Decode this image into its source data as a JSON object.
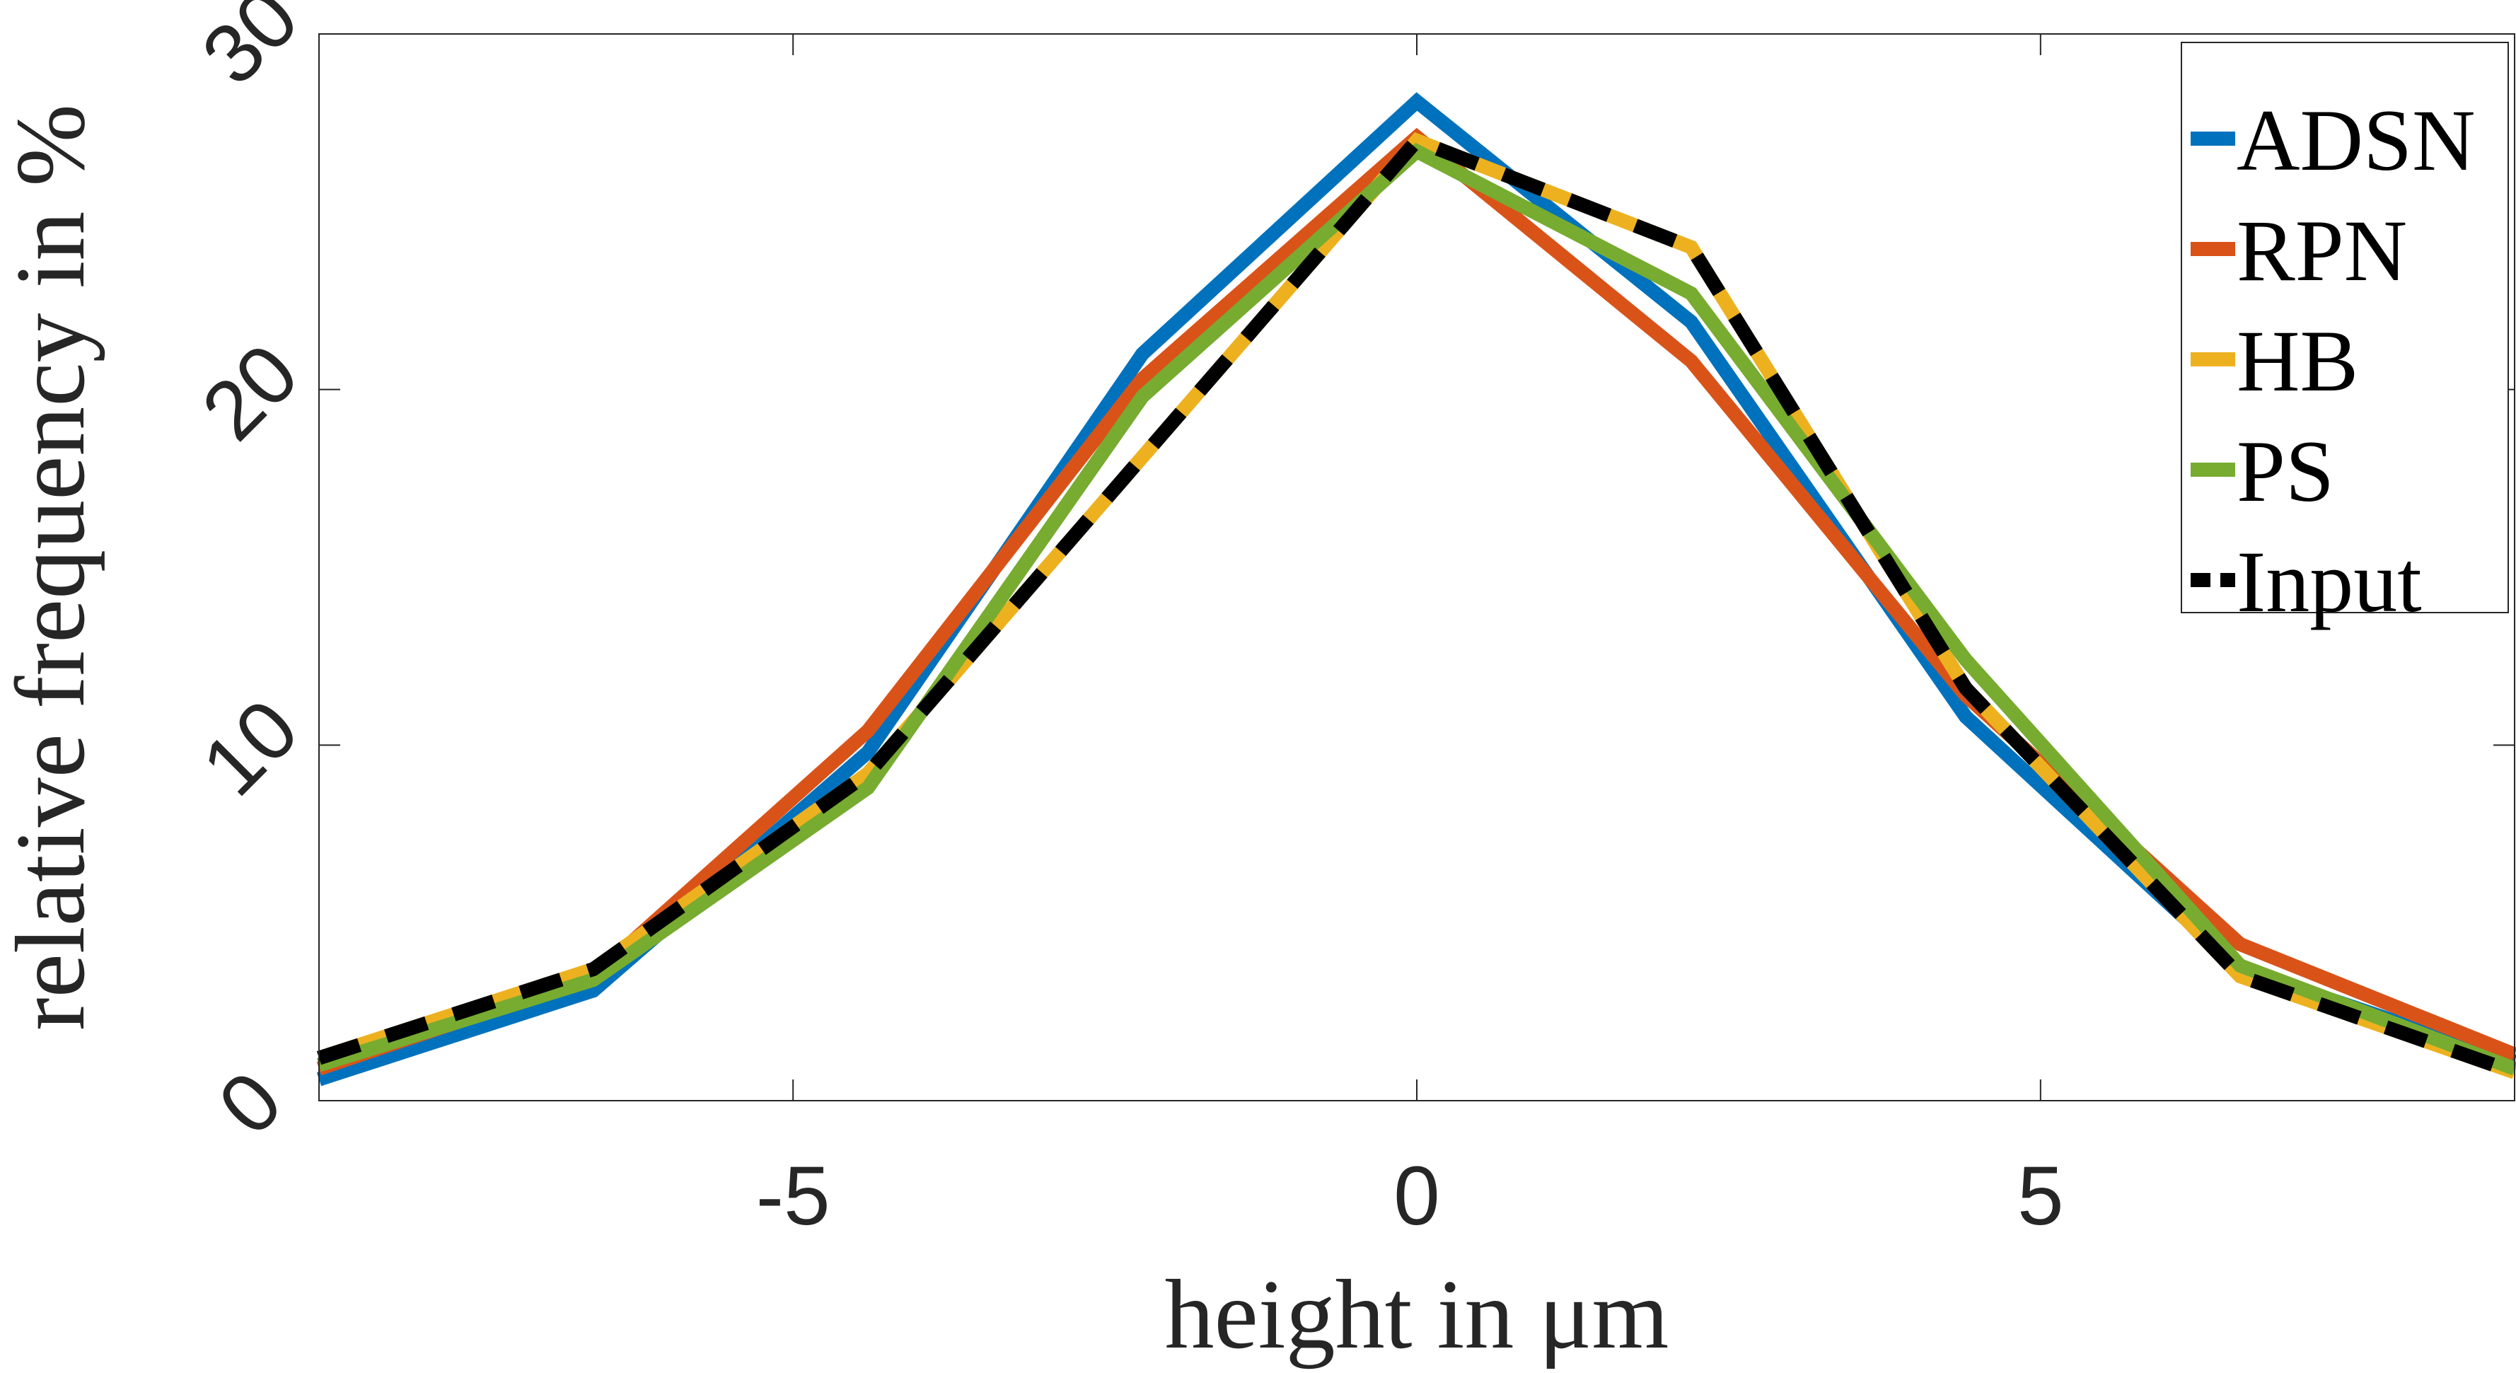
{
  "chart_data": {
    "type": "line",
    "title": "",
    "xlabel": "height in μm",
    "ylabel": "relative frequency in %",
    "xlim": [
      -8.8,
      8.8
    ],
    "ylim": [
      0,
      30
    ],
    "xticks": [
      -5,
      0,
      5
    ],
    "yticks": [
      0,
      10,
      20,
      30
    ],
    "xtick_labels": [
      "-5",
      "0",
      "5"
    ],
    "ytick_labels": [
      "0",
      "10",
      "20",
      "30"
    ],
    "grid": false,
    "legend_position": "top-right",
    "x": [
      -8.8,
      -6.6,
      -4.4,
      -2.2,
      0,
      2.2,
      4.4,
      6.6,
      8.8
    ],
    "series": [
      {
        "name": "ADSN",
        "color": "#0072BD",
        "dash": "solid",
        "values": [
          0.6,
          3.1,
          9.8,
          21.0,
          28.1,
          21.9,
          10.8,
          3.7,
          1.1
        ]
      },
      {
        "name": "RPN",
        "color": "#D95319",
        "dash": "solid",
        "values": [
          0.9,
          3.5,
          10.4,
          20.3,
          27.1,
          20.8,
          11.4,
          4.4,
          1.3
        ]
      },
      {
        "name": "HB",
        "color": "#EDB120",
        "dash": "solid",
        "values": [
          1.2,
          3.7,
          9.2,
          18.1,
          27.0,
          24.0,
          11.6,
          3.5,
          0.8
        ]
      },
      {
        "name": "PS",
        "color": "#77AC30",
        "dash": "solid",
        "values": [
          1.0,
          3.4,
          8.8,
          19.8,
          26.7,
          22.7,
          12.4,
          3.8,
          0.9
        ]
      },
      {
        "name": "Input",
        "color": "#000000",
        "dash": "dashed",
        "values": [
          1.2,
          3.7,
          9.2,
          18.1,
          27.0,
          24.0,
          11.6,
          3.5,
          0.8
        ]
      }
    ]
  }
}
